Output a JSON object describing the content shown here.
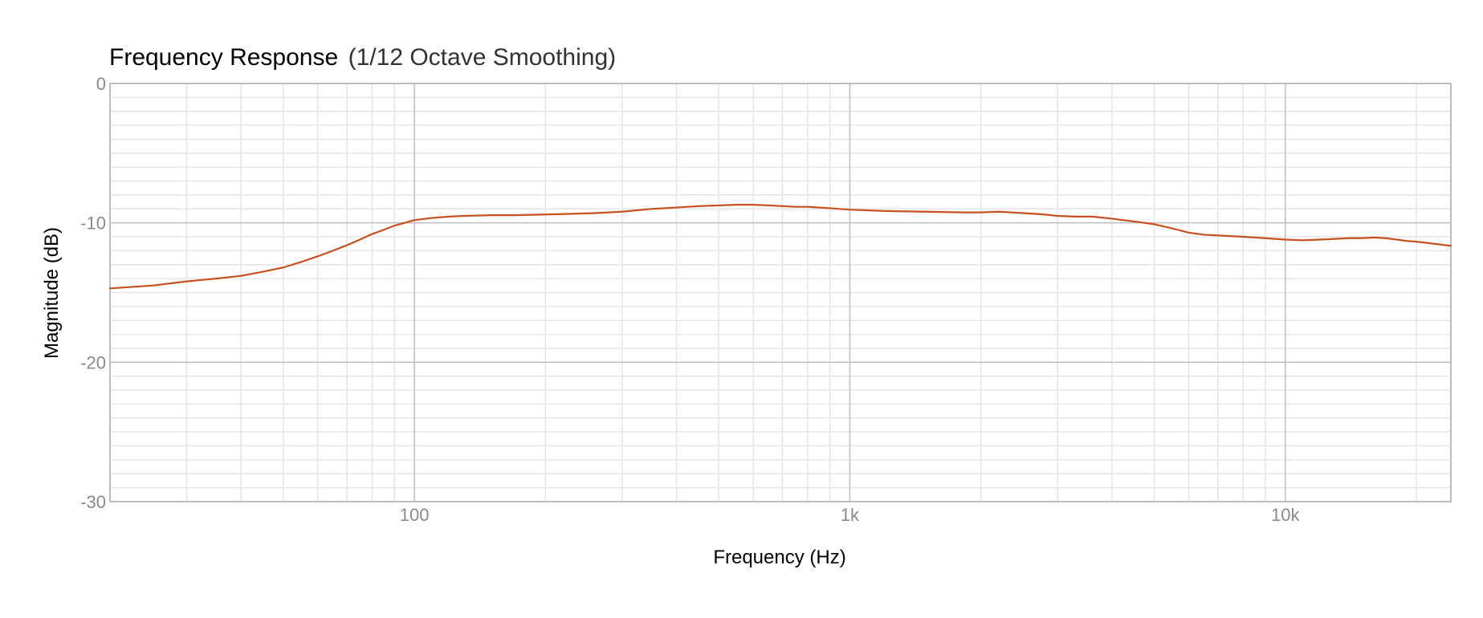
{
  "colors": {
    "series": "#c8501e"
  },
  "chart_data": {
    "type": "line",
    "title": "Frequency Response",
    "subtitle": "(1/12 Octave Smoothing)",
    "xlabel": "Frequency (Hz)",
    "ylabel": "Magnitude (dB)",
    "xscale": "log",
    "xlim": [
      20,
      24000
    ],
    "ylim": [
      -30,
      0
    ],
    "grid": true,
    "x_tick_values": [
      100,
      1000,
      10000
    ],
    "x_tick_labels": [
      "100",
      "1k",
      "10k"
    ],
    "y_tick_values": [
      0,
      -10,
      -20,
      -30
    ],
    "y_tick_labels": [
      "0",
      "-10",
      "-20",
      "-30"
    ],
    "series": [
      {
        "x": [
          20,
          25,
          30,
          35,
          40,
          45,
          50,
          55,
          60,
          65,
          70,
          75,
          80,
          85,
          90,
          95,
          100,
          110,
          120,
          130,
          150,
          170,
          200,
          230,
          260,
          300,
          350,
          400,
          450,
          500,
          550,
          600,
          650,
          700,
          750,
          800,
          850,
          900,
          1000,
          1200,
          1500,
          1800,
          2000,
          2200,
          2500,
          2800,
          3000,
          3300,
          3600,
          4000,
          4500,
          5000,
          5500,
          6000,
          6500,
          7000,
          8000,
          9000,
          10000,
          11000,
          12000,
          13000,
          14000,
          15000,
          16000,
          17000,
          18000,
          19000,
          20000,
          22000,
          24000
        ],
        "y": [
          -14.7,
          -14.5,
          -14.2,
          -14.0,
          -13.8,
          -13.5,
          -13.2,
          -12.8,
          -12.4,
          -12.0,
          -11.6,
          -11.2,
          -10.8,
          -10.5,
          -10.2,
          -10.0,
          -9.8,
          -9.65,
          -9.55,
          -9.5,
          -9.45,
          -9.45,
          -9.4,
          -9.35,
          -9.3,
          -9.2,
          -9.0,
          -8.9,
          -8.8,
          -8.75,
          -8.7,
          -8.7,
          -8.75,
          -8.8,
          -8.85,
          -8.85,
          -8.9,
          -8.95,
          -9.05,
          -9.15,
          -9.2,
          -9.25,
          -9.25,
          -9.2,
          -9.3,
          -9.4,
          -9.5,
          -9.55,
          -9.55,
          -9.7,
          -9.9,
          -10.1,
          -10.4,
          -10.7,
          -10.85,
          -10.9,
          -11.0,
          -11.1,
          -11.2,
          -11.25,
          -11.2,
          -11.15,
          -11.1,
          -11.1,
          -11.05,
          -11.1,
          -11.2,
          -11.3,
          -11.35,
          -11.5,
          -11.65
        ]
      }
    ]
  }
}
